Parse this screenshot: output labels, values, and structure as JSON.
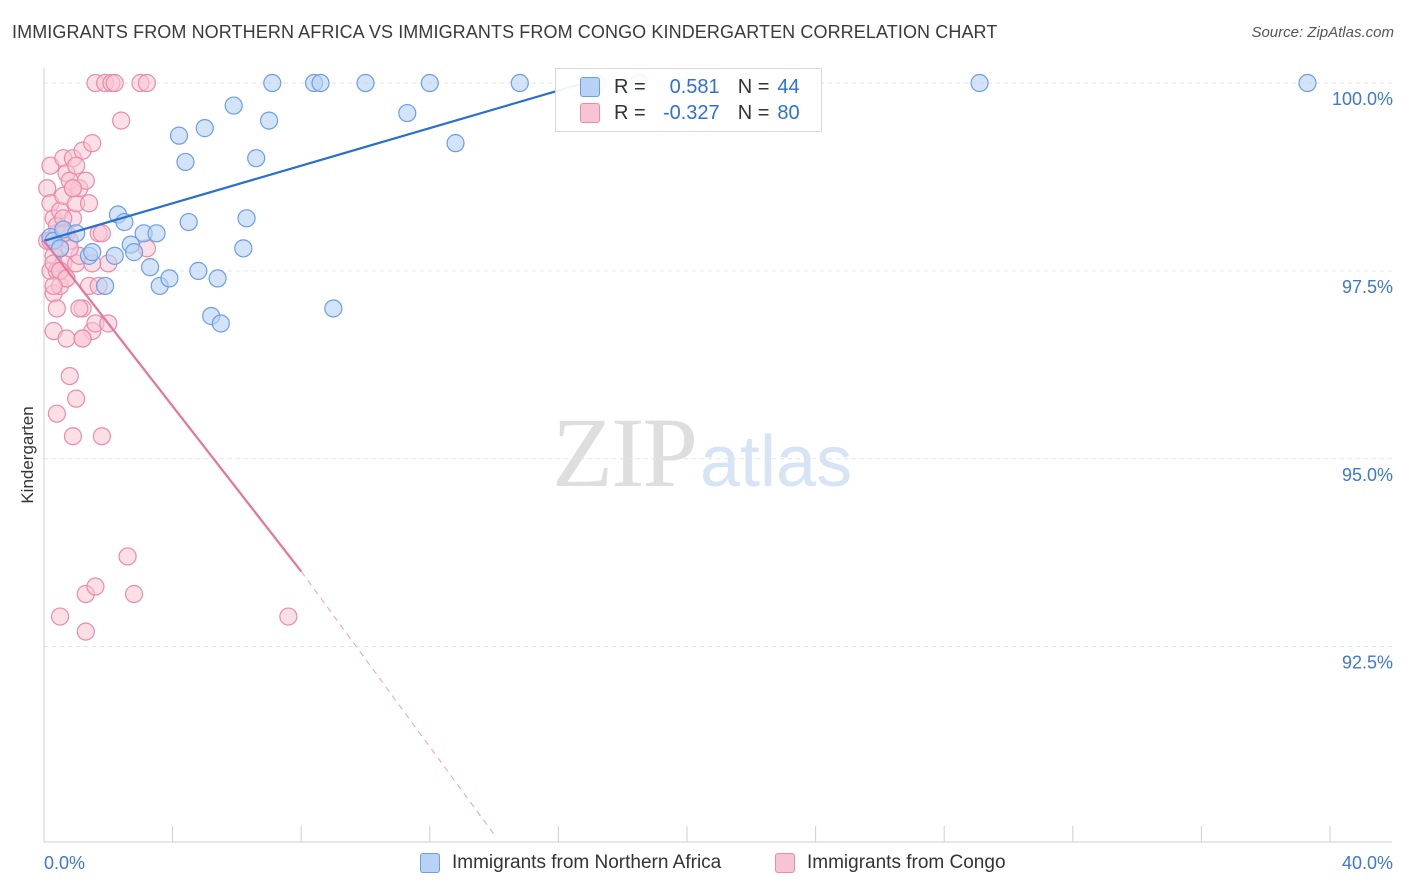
{
  "header": {
    "title": "IMMIGRANTS FROM NORTHERN AFRICA VS IMMIGRANTS FROM CONGO KINDERGARTEN CORRELATION CHART",
    "source": "Source: ZipAtlas.com"
  },
  "watermark": {
    "zip": "ZIP",
    "atlas": "atlas"
  },
  "legend": {
    "series1_label": "Immigrants from Northern Africa",
    "series2_label": "Immigrants from Congo"
  },
  "stats": {
    "row1": {
      "r_label": "R =",
      "r_value": "0.581",
      "n_label": "N =",
      "n_value": "44"
    },
    "row2": {
      "r_label": "R =",
      "r_value": "-0.327",
      "n_label": "N =",
      "n_value": "80"
    }
  },
  "colors": {
    "blue_fill": "#b7d2f4",
    "blue_stroke": "#6b9ee6",
    "blue_line": "#2a6fd0",
    "pink_fill": "#f7c4d3",
    "pink_stroke": "#ec8aab",
    "pink_line": "#e8739b",
    "tick_text": "#3d77d1",
    "grid": "#e3e3e3"
  },
  "chart_data": {
    "type": "scatter",
    "title": "IMMIGRANTS FROM NORTHERN AFRICA VS IMMIGRANTS FROM CONGO KINDERGARTEN CORRELATION CHART",
    "xlabel": "",
    "ylabel": "Kindergarten",
    "xlim": [
      0,
      40
    ],
    "ylim": [
      89.9,
      100.2
    ],
    "x_tick_labels": [
      "0.0%",
      "40.0%"
    ],
    "y_ticks": [
      92.5,
      95.0,
      97.5,
      100.0
    ],
    "y_tick_labels": [
      "92.5%",
      "95.0%",
      "97.5%",
      "100.0%"
    ],
    "grid": true,
    "legend_position": "bottom",
    "series": [
      {
        "name": "Immigrants from Northern Africa",
        "r": 0.581,
        "n": 44,
        "trend": {
          "x": [
            0,
            16.8
          ],
          "y": [
            97.9,
            100.0
          ]
        },
        "x": [
          0.2,
          0.3,
          0.5,
          0.6,
          1.0,
          1.4,
          1.5,
          1.9,
          2.2,
          2.3,
          2.5,
          2.7,
          2.8,
          3.1,
          3.3,
          3.5,
          3.6,
          3.9,
          4.2,
          4.4,
          4.5,
          4.8,
          5.0,
          5.2,
          5.4,
          5.5,
          5.9,
          6.2,
          6.3,
          6.6,
          7.0,
          7.1,
          8.4,
          8.6,
          9.0,
          10.0,
          11.3,
          12.0,
          12.8,
          14.8,
          17.2,
          18.5,
          29.1,
          39.3
        ],
        "y": [
          97.95,
          97.9,
          97.8,
          98.05,
          98.0,
          97.7,
          97.75,
          97.3,
          97.7,
          98.25,
          98.15,
          97.85,
          97.75,
          98.0,
          97.55,
          98.0,
          97.3,
          97.4,
          99.3,
          98.95,
          98.15,
          97.5,
          99.4,
          96.9,
          97.4,
          96.8,
          99.7,
          97.8,
          98.2,
          99.0,
          99.5,
          100.0,
          100.0,
          100.0,
          97.0,
          100.0,
          99.6,
          100.0,
          99.2,
          100.0,
          100.0,
          100.0,
          100.0,
          100.0
        ]
      },
      {
        "name": "Immigrants from Congo",
        "r": -0.327,
        "n": 80,
        "trend": {
          "x": [
            0,
            8.0
          ],
          "y": [
            97.9,
            93.5
          ],
          "dashed_to": {
            "x": 14.0,
            "y": 90.0
          }
        },
        "x": [
          0.1,
          0.1,
          0.2,
          0.2,
          0.2,
          0.3,
          0.3,
          0.3,
          0.3,
          0.4,
          0.4,
          0.4,
          0.4,
          0.5,
          0.5,
          0.5,
          0.5,
          0.6,
          0.6,
          0.6,
          0.7,
          0.7,
          0.7,
          0.7,
          0.8,
          0.8,
          0.8,
          0.9,
          0.9,
          0.9,
          1.0,
          1.0,
          1.0,
          1.1,
          1.1,
          1.2,
          1.2,
          1.3,
          1.3,
          1.4,
          1.5,
          1.5,
          1.6,
          1.6,
          1.7,
          1.8,
          1.9,
          2.0,
          2.1,
          2.2,
          2.4,
          2.6,
          2.8,
          3.0,
          3.2,
          0.2,
          0.3,
          0.4,
          0.5,
          0.6,
          0.8,
          1.0,
          1.2,
          1.4,
          1.6,
          1.8,
          2.0,
          0.5,
          0.7,
          0.9,
          1.1,
          1.3,
          1.5,
          1.7,
          0.3,
          0.6,
          0.9,
          1.2,
          7.6,
          3.2
        ],
        "y": [
          98.6,
          97.9,
          98.9,
          98.4,
          97.5,
          98.2,
          97.7,
          97.2,
          96.7,
          98.0,
          97.5,
          97.0,
          95.6,
          98.3,
          97.8,
          97.3,
          92.9,
          99.0,
          98.5,
          97.6,
          98.8,
          98.0,
          97.4,
          96.6,
          98.7,
          97.9,
          96.1,
          99.0,
          98.2,
          95.3,
          98.4,
          97.6,
          95.8,
          98.6,
          97.7,
          99.1,
          97.0,
          98.7,
          93.2,
          97.3,
          99.2,
          96.7,
          100.0,
          93.3,
          98.0,
          95.3,
          100.0,
          97.6,
          100.0,
          100.0,
          99.5,
          93.7,
          93.2,
          100.0,
          100.0,
          97.9,
          97.6,
          98.1,
          97.5,
          98.2,
          97.8,
          98.9,
          96.6,
          98.4,
          96.8,
          98.0,
          96.8,
          97.5,
          97.4,
          98.6,
          97.0,
          92.7,
          97.6,
          97.3,
          97.3,
          98.0,
          98.6,
          96.6,
          92.9,
          97.8
        ]
      }
    ]
  }
}
